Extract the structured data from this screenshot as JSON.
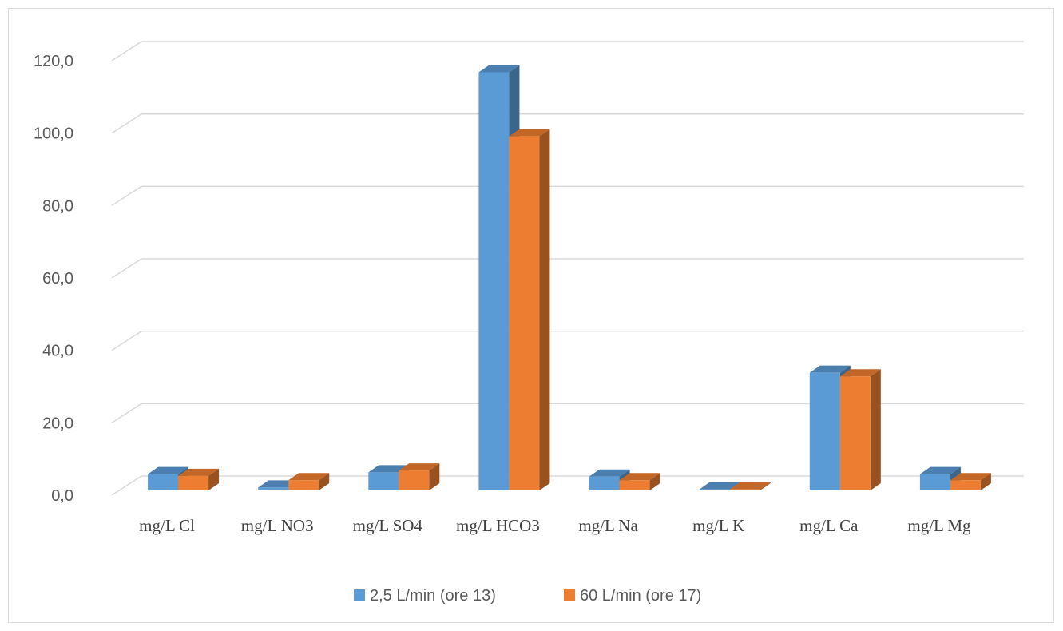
{
  "chart_data": {
    "type": "bar",
    "categories": [
      "mg/L Cl",
      "mg/L NO3",
      "mg/L SO4",
      "mg/L HCO3",
      "mg/L Na",
      "mg/L K",
      "mg/L Ca",
      "mg/L Mg"
    ],
    "series": [
      {
        "name": "2,5 L/min (ore 13)",
        "values": [
          4.5,
          0.8,
          5.0,
          115.5,
          3.8,
          0.3,
          32.5,
          4.5
        ],
        "color": "#5b9bd5"
      },
      {
        "name": "60 L/min (ore 17)",
        "values": [
          4.0,
          2.8,
          5.5,
          97.8,
          2.8,
          0.3,
          31.5,
          2.8
        ],
        "color": "#ed7d31"
      }
    ],
    "y_ticks": [
      "0,0",
      "20,0",
      "40,0",
      "60,0",
      "80,0",
      "100,0",
      "120,0"
    ],
    "ylim": [
      0,
      120
    ],
    "grid": true,
    "style": "3d-clustered-column",
    "legend": "bottom"
  }
}
